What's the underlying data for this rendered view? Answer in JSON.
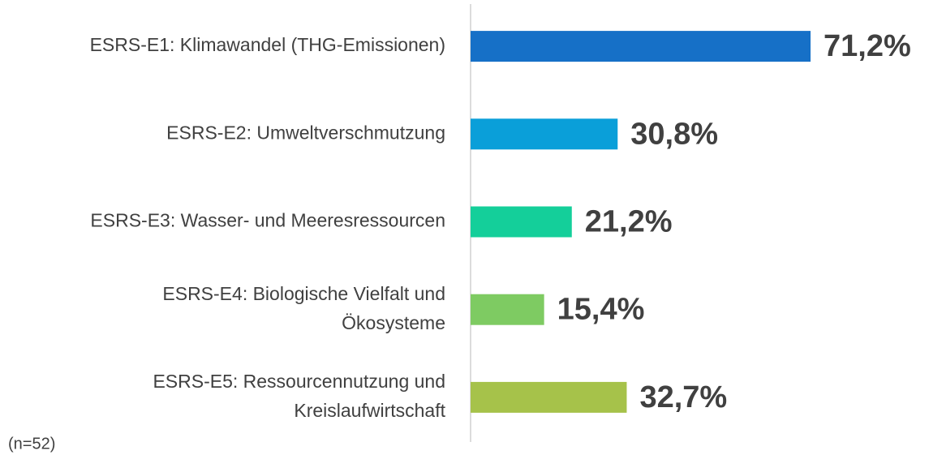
{
  "chart_data": {
    "type": "bar",
    "orientation": "horizontal",
    "categories": [
      [
        "ESRS-E1: Klimawandel (THG-Emissionen)"
      ],
      [
        "ESRS-E2: Umweltverschmutzung"
      ],
      [
        "ESRS-E3: Wasser- und Meeresressourcen"
      ],
      [
        "ESRS-E4: Biologische Vielfalt und",
        "Ökosysteme"
      ],
      [
        "ESRS-E5: Ressourcennutzung und",
        "Kreislaufwirtschaft"
      ]
    ],
    "values": [
      71.2,
      30.8,
      21.2,
      15.4,
      32.7
    ],
    "value_labels": [
      "71,2%",
      "30,8%",
      "21,2%",
      "15,4%",
      "32,7%"
    ],
    "colors": [
      "#1670c7",
      "#0a9fd9",
      "#14cf9a",
      "#7ecb62",
      "#a6c24a"
    ],
    "xlim": [
      0,
      100
    ],
    "note": "(n=52)"
  }
}
